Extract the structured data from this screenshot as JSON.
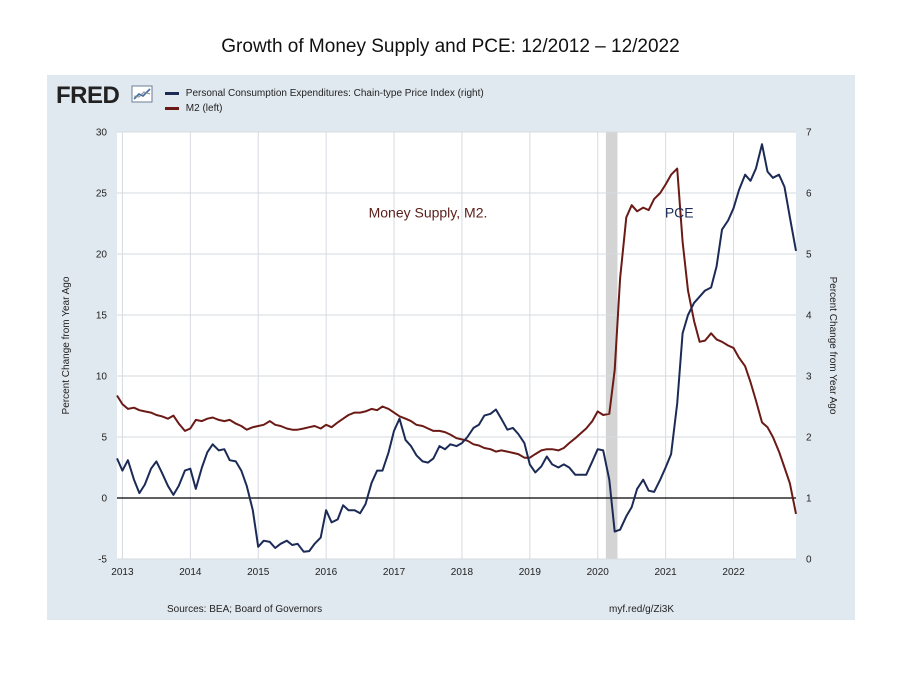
{
  "title": "Growth of Money Supply and PCE: 12/2012  – 12/2022",
  "fred": {
    "logo": "FRED",
    "sources": "Sources: BEA; Board of Governors",
    "link": "myf.red/g/Zi3K"
  },
  "colors": {
    "pce": "#1b2b56",
    "m2": "#6b1a16",
    "recession": "#d4d4d4",
    "plot_bg": "#ffffff",
    "panel_bg": "#e1e9f0",
    "grid": "#d6dbe0",
    "pce_annotation": "#1b2b56",
    "m2_annotation": "#5a1e18"
  },
  "chart_data": {
    "type": "line",
    "title": "Growth of Money Supply and PCE: 12/2012  – 12/2022",
    "xlabel": "",
    "ylabel": "Percent Change from Year Ago",
    "ylabel_right": "Percent Change from Year Ago",
    "xlim": [
      2012.92,
      2022.92
    ],
    "ylim_left": [
      -5,
      30
    ],
    "ylim_right": [
      0,
      7
    ],
    "y_ticks_left": [
      -5,
      0,
      5,
      10,
      15,
      20,
      25,
      30
    ],
    "y_ticks_right": [
      0,
      1,
      2,
      3,
      4,
      5,
      6,
      7
    ],
    "x_ticks": [
      2013,
      2014,
      2015,
      2016,
      2017,
      2018,
      2019,
      2020,
      2021,
      2022
    ],
    "grid": true,
    "legend_position": "top-left",
    "zero_line": 0,
    "recession_band": [
      2020.12,
      2020.29
    ],
    "annotations": [
      {
        "text": "PCE",
        "x": 2021.2,
        "y": 5.6,
        "axis": "right",
        "series": "pce"
      },
      {
        "text": "Money Supply, M2.",
        "x": 2017.5,
        "y": 23,
        "axis": "left",
        "series": "m2"
      }
    ],
    "series": [
      {
        "name": "Personal Consumption Expenditures: Chain-type Price Index (right)",
        "axis": "right",
        "points": [
          [
            2012.92,
            1.65
          ],
          [
            2013.0,
            1.45
          ],
          [
            2013.08,
            1.62
          ],
          [
            2013.17,
            1.3
          ],
          [
            2013.25,
            1.08
          ],
          [
            2013.33,
            1.22
          ],
          [
            2013.42,
            1.48
          ],
          [
            2013.5,
            1.6
          ],
          [
            2013.58,
            1.42
          ],
          [
            2013.67,
            1.2
          ],
          [
            2013.75,
            1.05
          ],
          [
            2013.83,
            1.2
          ],
          [
            2013.92,
            1.45
          ],
          [
            2014.0,
            1.48
          ],
          [
            2014.08,
            1.15
          ],
          [
            2014.17,
            1.5
          ],
          [
            2014.25,
            1.75
          ],
          [
            2014.33,
            1.88
          ],
          [
            2014.42,
            1.78
          ],
          [
            2014.5,
            1.8
          ],
          [
            2014.58,
            1.62
          ],
          [
            2014.67,
            1.6
          ],
          [
            2014.75,
            1.45
          ],
          [
            2014.83,
            1.2
          ],
          [
            2014.92,
            0.8
          ],
          [
            2015.0,
            0.2
          ],
          [
            2015.08,
            0.3
          ],
          [
            2015.17,
            0.28
          ],
          [
            2015.25,
            0.18
          ],
          [
            2015.33,
            0.25
          ],
          [
            2015.42,
            0.3
          ],
          [
            2015.5,
            0.23
          ],
          [
            2015.58,
            0.25
          ],
          [
            2015.67,
            0.12
          ],
          [
            2015.75,
            0.13
          ],
          [
            2015.83,
            0.25
          ],
          [
            2015.92,
            0.35
          ],
          [
            2016.0,
            0.8
          ],
          [
            2016.08,
            0.6
          ],
          [
            2016.17,
            0.65
          ],
          [
            2016.25,
            0.88
          ],
          [
            2016.33,
            0.8
          ],
          [
            2016.42,
            0.8
          ],
          [
            2016.5,
            0.75
          ],
          [
            2016.58,
            0.9
          ],
          [
            2016.67,
            1.25
          ],
          [
            2016.75,
            1.45
          ],
          [
            2016.83,
            1.45
          ],
          [
            2016.92,
            1.75
          ],
          [
            2017.0,
            2.1
          ],
          [
            2017.08,
            2.3
          ],
          [
            2017.17,
            1.95
          ],
          [
            2017.25,
            1.85
          ],
          [
            2017.33,
            1.7
          ],
          [
            2017.42,
            1.6
          ],
          [
            2017.5,
            1.58
          ],
          [
            2017.58,
            1.65
          ],
          [
            2017.67,
            1.85
          ],
          [
            2017.75,
            1.8
          ],
          [
            2017.83,
            1.88
          ],
          [
            2017.92,
            1.85
          ],
          [
            2018.0,
            1.9
          ],
          [
            2018.08,
            2.0
          ],
          [
            2018.17,
            2.15
          ],
          [
            2018.25,
            2.2
          ],
          [
            2018.33,
            2.35
          ],
          [
            2018.42,
            2.38
          ],
          [
            2018.5,
            2.45
          ],
          [
            2018.58,
            2.3
          ],
          [
            2018.67,
            2.12
          ],
          [
            2018.75,
            2.15
          ],
          [
            2018.83,
            2.05
          ],
          [
            2018.92,
            1.9
          ],
          [
            2019.0,
            1.55
          ],
          [
            2019.08,
            1.42
          ],
          [
            2019.17,
            1.52
          ],
          [
            2019.25,
            1.68
          ],
          [
            2019.33,
            1.55
          ],
          [
            2019.42,
            1.5
          ],
          [
            2019.5,
            1.55
          ],
          [
            2019.58,
            1.5
          ],
          [
            2019.67,
            1.38
          ],
          [
            2019.75,
            1.38
          ],
          [
            2019.83,
            1.38
          ],
          [
            2019.92,
            1.6
          ],
          [
            2020.0,
            1.8
          ],
          [
            2020.08,
            1.78
          ],
          [
            2020.17,
            1.3
          ],
          [
            2020.25,
            0.45
          ],
          [
            2020.33,
            0.48
          ],
          [
            2020.42,
            0.7
          ],
          [
            2020.5,
            0.85
          ],
          [
            2020.58,
            1.15
          ],
          [
            2020.67,
            1.3
          ],
          [
            2020.75,
            1.12
          ],
          [
            2020.83,
            1.1
          ],
          [
            2020.92,
            1.3
          ],
          [
            2021.0,
            1.5
          ],
          [
            2021.08,
            1.72
          ],
          [
            2021.17,
            2.55
          ],
          [
            2021.25,
            3.7
          ],
          [
            2021.33,
            4.0
          ],
          [
            2021.42,
            4.2
          ],
          [
            2021.5,
            4.3
          ],
          [
            2021.58,
            4.4
          ],
          [
            2021.67,
            4.45
          ],
          [
            2021.75,
            4.8
          ],
          [
            2021.83,
            5.4
          ],
          [
            2021.92,
            5.55
          ],
          [
            2022.0,
            5.75
          ],
          [
            2022.08,
            6.05
          ],
          [
            2022.17,
            6.3
          ],
          [
            2022.25,
            6.2
          ],
          [
            2022.33,
            6.4
          ],
          [
            2022.42,
            6.8
          ],
          [
            2022.5,
            6.35
          ],
          [
            2022.58,
            6.25
          ],
          [
            2022.67,
            6.3
          ],
          [
            2022.75,
            6.1
          ],
          [
            2022.83,
            5.6
          ],
          [
            2022.92,
            5.05
          ]
        ]
      },
      {
        "name": "M2 (left)",
        "axis": "left",
        "points": [
          [
            2012.92,
            8.4
          ],
          [
            2013.0,
            7.7
          ],
          [
            2013.08,
            7.3
          ],
          [
            2013.17,
            7.4
          ],
          [
            2013.25,
            7.2
          ],
          [
            2013.33,
            7.1
          ],
          [
            2013.42,
            7.0
          ],
          [
            2013.5,
            6.8
          ],
          [
            2013.58,
            6.7
          ],
          [
            2013.67,
            6.5
          ],
          [
            2013.75,
            6.75
          ],
          [
            2013.83,
            6.1
          ],
          [
            2013.92,
            5.5
          ],
          [
            2014.0,
            5.7
          ],
          [
            2014.08,
            6.4
          ],
          [
            2014.17,
            6.3
          ],
          [
            2014.25,
            6.5
          ],
          [
            2014.33,
            6.6
          ],
          [
            2014.42,
            6.4
          ],
          [
            2014.5,
            6.3
          ],
          [
            2014.58,
            6.4
          ],
          [
            2014.67,
            6.1
          ],
          [
            2014.75,
            5.9
          ],
          [
            2014.83,
            5.6
          ],
          [
            2014.92,
            5.8
          ],
          [
            2015.0,
            5.9
          ],
          [
            2015.08,
            6.0
          ],
          [
            2015.17,
            6.3
          ],
          [
            2015.25,
            6.0
          ],
          [
            2015.33,
            5.9
          ],
          [
            2015.42,
            5.7
          ],
          [
            2015.5,
            5.6
          ],
          [
            2015.58,
            5.6
          ],
          [
            2015.67,
            5.7
          ],
          [
            2015.75,
            5.8
          ],
          [
            2015.83,
            5.9
          ],
          [
            2015.92,
            5.7
          ],
          [
            2016.0,
            6.0
          ],
          [
            2016.08,
            5.8
          ],
          [
            2016.17,
            6.2
          ],
          [
            2016.25,
            6.5
          ],
          [
            2016.33,
            6.8
          ],
          [
            2016.42,
            7.0
          ],
          [
            2016.5,
            7.0
          ],
          [
            2016.58,
            7.1
          ],
          [
            2016.67,
            7.3
          ],
          [
            2016.75,
            7.2
          ],
          [
            2016.83,
            7.5
          ],
          [
            2016.92,
            7.3
          ],
          [
            2017.0,
            7.0
          ],
          [
            2017.08,
            6.7
          ],
          [
            2017.17,
            6.5
          ],
          [
            2017.25,
            6.3
          ],
          [
            2017.33,
            6.0
          ],
          [
            2017.42,
            5.9
          ],
          [
            2017.5,
            5.7
          ],
          [
            2017.58,
            5.5
          ],
          [
            2017.67,
            5.5
          ],
          [
            2017.75,
            5.4
          ],
          [
            2017.83,
            5.2
          ],
          [
            2017.92,
            4.9
          ],
          [
            2018.0,
            4.8
          ],
          [
            2018.08,
            4.7
          ],
          [
            2018.17,
            4.4
          ],
          [
            2018.25,
            4.3
          ],
          [
            2018.33,
            4.1
          ],
          [
            2018.42,
            4.0
          ],
          [
            2018.5,
            3.8
          ],
          [
            2018.58,
            3.9
          ],
          [
            2018.67,
            3.8
          ],
          [
            2018.75,
            3.7
          ],
          [
            2018.83,
            3.6
          ],
          [
            2018.92,
            3.3
          ],
          [
            2019.0,
            3.3
          ],
          [
            2019.08,
            3.6
          ],
          [
            2019.17,
            3.9
          ],
          [
            2019.25,
            4.0
          ],
          [
            2019.33,
            4.0
          ],
          [
            2019.42,
            3.9
          ],
          [
            2019.5,
            4.1
          ],
          [
            2019.58,
            4.5
          ],
          [
            2019.67,
            4.9
          ],
          [
            2019.75,
            5.3
          ],
          [
            2019.83,
            5.7
          ],
          [
            2019.92,
            6.3
          ],
          [
            2020.0,
            7.1
          ],
          [
            2020.08,
            6.8
          ],
          [
            2020.17,
            6.9
          ],
          [
            2020.25,
            10.5
          ],
          [
            2020.33,
            18.0
          ],
          [
            2020.42,
            23.0
          ],
          [
            2020.5,
            24.0
          ],
          [
            2020.58,
            23.5
          ],
          [
            2020.67,
            23.8
          ],
          [
            2020.75,
            23.6
          ],
          [
            2020.83,
            24.5
          ],
          [
            2020.92,
            25.0
          ],
          [
            2021.0,
            25.7
          ],
          [
            2021.08,
            26.5
          ],
          [
            2021.17,
            27.0
          ],
          [
            2021.25,
            21.0
          ],
          [
            2021.33,
            17.0
          ],
          [
            2021.42,
            14.5
          ],
          [
            2021.5,
            12.8
          ],
          [
            2021.58,
            12.9
          ],
          [
            2021.67,
            13.5
          ],
          [
            2021.75,
            13.0
          ],
          [
            2021.83,
            12.8
          ],
          [
            2021.92,
            12.5
          ],
          [
            2022.0,
            12.3
          ],
          [
            2022.08,
            11.5
          ],
          [
            2022.17,
            10.8
          ],
          [
            2022.25,
            9.5
          ],
          [
            2022.33,
            8.0
          ],
          [
            2022.42,
            6.2
          ],
          [
            2022.5,
            5.8
          ],
          [
            2022.58,
            5.0
          ],
          [
            2022.67,
            3.8
          ],
          [
            2022.75,
            2.5
          ],
          [
            2022.83,
            1.2
          ],
          [
            2022.92,
            -1.3
          ]
        ]
      }
    ]
  }
}
